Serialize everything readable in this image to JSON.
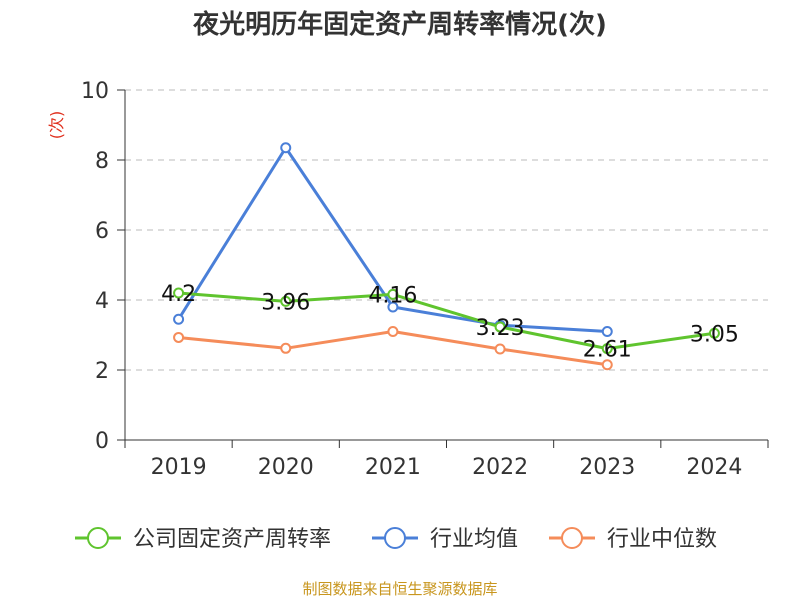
{
  "title": "夜光明历年固定资产周转率情况(次)",
  "source": "制图数据来自恒生聚源数据库",
  "chart_data": {
    "type": "line",
    "title": "夜光明历年固定资产周转率情况(次)",
    "ylabel": "(次)",
    "categories": [
      "2019",
      "2020",
      "2021",
      "2022",
      "2023",
      "2024"
    ],
    "ylim": [
      0,
      10
    ],
    "yticks": [
      0,
      2,
      4,
      6,
      8,
      10
    ],
    "grid": true,
    "legend_position": "bottom",
    "series": [
      {
        "name": "公司固定资产周转率",
        "color": "#5fc42e",
        "values": [
          4.2,
          3.96,
          4.16,
          3.23,
          2.61,
          3.05
        ],
        "labels": [
          "4.2",
          "3.96",
          "4.16",
          "3.23",
          "2.61",
          "3.05"
        ]
      },
      {
        "name": "行业均值",
        "color": "#4a7fd8",
        "values": [
          3.45,
          8.35,
          3.8,
          3.28,
          3.1,
          null
        ]
      },
      {
        "name": "行业中位数",
        "color": "#f58c5a",
        "values": [
          2.93,
          2.62,
          3.1,
          2.6,
          2.15,
          null
        ]
      }
    ]
  }
}
